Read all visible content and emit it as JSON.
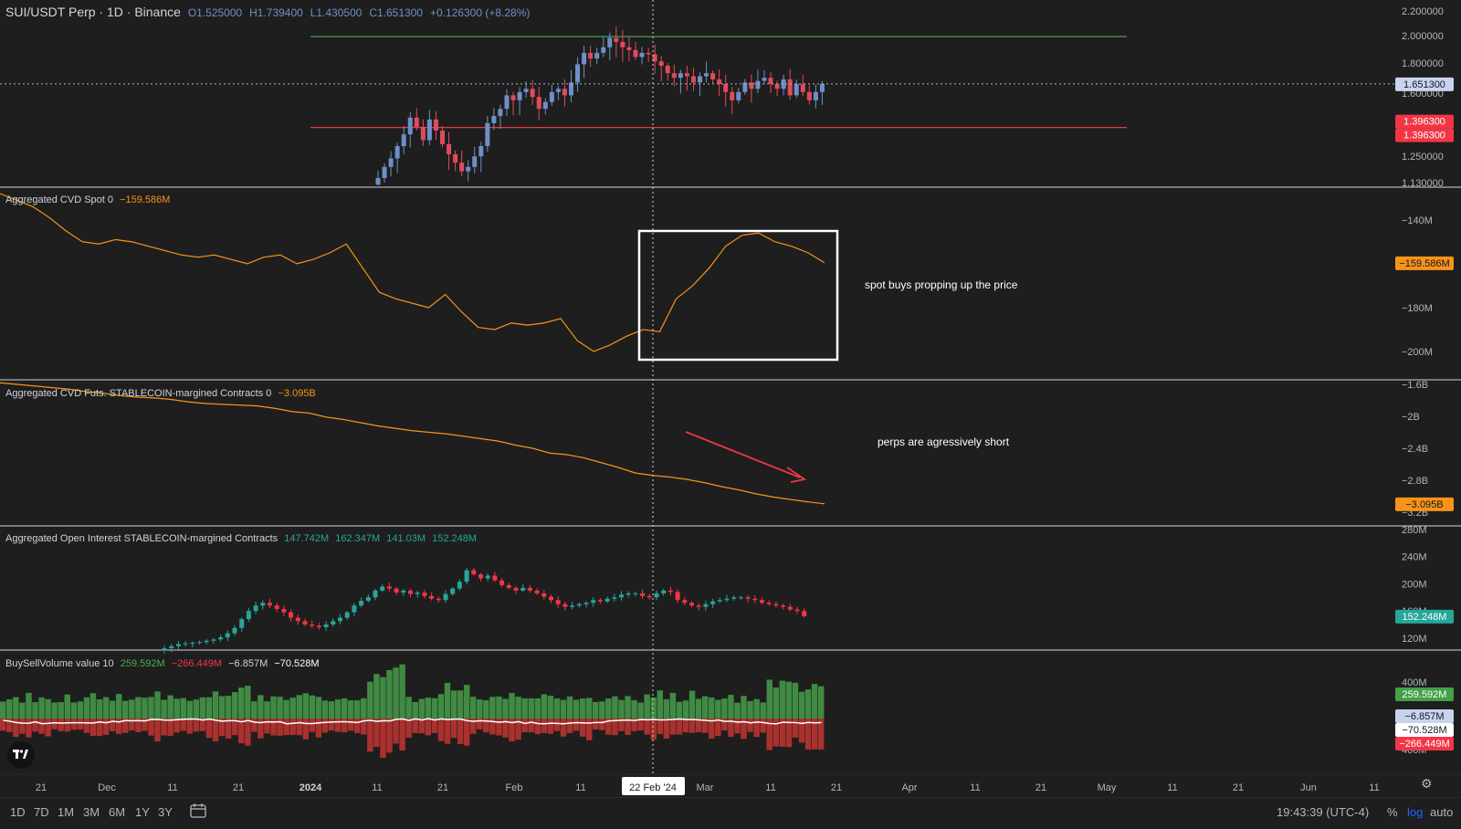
{
  "header": {
    "symbol": "SUI/USDT Perp · 1D · Binance",
    "o": "O1.525000",
    "h": "H1.739400",
    "l": "L1.430500",
    "c": "C1.651300",
    "chg": "+0.126300 (+8.28%)"
  },
  "colors": {
    "bg": "#1e1e1e",
    "up": "#6e8fc9",
    "down": "#e04b5c",
    "green": "#4caf50",
    "red": "#f23645",
    "orange": "#f7931a",
    "teal": "#26a69a",
    "white": "#ffffff"
  },
  "price_pane": {
    "axis_labels": [
      "2.200000",
      "2.000000",
      "1.800000",
      "1.600000",
      "1.250000",
      "1.130000"
    ],
    "price_tag": "1.651300",
    "level_tags": [
      "1.396300",
      "1.396300"
    ],
    "resistance_level": 1.98,
    "support_level": 1.3963
  },
  "cvd_spot": {
    "title": "Aggregated CVD Spot 0",
    "value": "−159.586M",
    "axis_labels": [
      "−140M",
      "−180M",
      "−200M"
    ],
    "tag": "−159.586M",
    "annotation": "spot buys propping up the price"
  },
  "cvd_futs": {
    "title": "Aggregated CVD Futs. STABLECOIN-margined Contracts 0",
    "value": "−3.095B",
    "axis_labels": [
      "−1.6B",
      "−2B",
      "−2.4B",
      "−2.8B",
      "−3.2B"
    ],
    "tag": "−3.095B",
    "annotation": "perps are agressively short"
  },
  "open_interest": {
    "title": "Aggregated Open Interest STABLECOIN-margined Contracts",
    "values": [
      "147.742M",
      "162.347M",
      "141.03M",
      "152.248M"
    ],
    "axis_labels": [
      "280M",
      "240M",
      "200M",
      "160M",
      "120M"
    ],
    "tag": "152.248M"
  },
  "buysell": {
    "title": "BuySellVolume value 10",
    "v1": "259.592M",
    "v2": "−266.449M",
    "v3": "−6.857M",
    "v4": "−70.528M",
    "axis_labels": [
      "400M",
      "400M"
    ],
    "tags": [
      "259.592M",
      "−6.857M",
      "−70.528M",
      "−266.449M"
    ]
  },
  "time_axis": {
    "labels": [
      "21",
      "Dec",
      "11",
      "21",
      "2024",
      "11",
      "21",
      "Feb",
      "11",
      "Mar",
      "11",
      "21",
      "Apr",
      "11",
      "21",
      "May",
      "11",
      "21",
      "Jun",
      "11"
    ],
    "crosshair_label": "22 Feb '24"
  },
  "bottom_bar": {
    "timeframes": [
      "1D",
      "7D",
      "1M",
      "3M",
      "6M",
      "1Y",
      "3Y"
    ],
    "clock": "19:43:39 (UTC-4)",
    "pct": "%",
    "log": "log",
    "auto": "auto"
  },
  "chart_data": [
    {
      "type": "candlestick",
      "title": "SUI/USDT Perp · 1D · Binance",
      "ylim": [
        1.13,
        2.2
      ],
      "log_scale": true,
      "x_range": [
        "2023-11-18",
        "2024-03-19"
      ],
      "series": [
        {
          "name": "SUI/USDT",
          "open_high_low_close_last": [
            1.525,
            1.7394,
            1.4305,
            1.6513
          ]
        }
      ],
      "horizontal_lines": [
        {
          "value": 1.98,
          "color": "green"
        },
        {
          "value": 1.3963,
          "color": "red"
        }
      ]
    },
    {
      "type": "line",
      "title": "Aggregated CVD Spot 0",
      "last_value_M": -159.586,
      "ylim_M": [
        -205,
        -128
      ],
      "points_M": [
        -128,
        -131,
        -134,
        -139,
        -145,
        -150,
        -151,
        -149,
        -150,
        -152,
        -154,
        -156,
        -157,
        -156,
        -158,
        -160,
        -157,
        -156,
        -160,
        -158,
        -155,
        -151,
        -162,
        -173,
        -176,
        -178,
        -180,
        -174,
        -182,
        -189,
        -190,
        -187,
        -188,
        -187,
        -185,
        -195,
        -200,
        -197,
        -193,
        -190,
        -191,
        -176,
        -170,
        -162,
        -152,
        -147,
        -146,
        -150,
        -152,
        -155,
        -159.586
      ]
    },
    {
      "type": "line",
      "title": "Aggregated CVD Futs. STABLECOIN-margined Contracts 0",
      "last_value_B": -3.095,
      "ylim_B": [
        -3.2,
        -1.6
      ],
      "points_B": [
        -1.58,
        -1.6,
        -1.62,
        -1.64,
        -1.66,
        -1.69,
        -1.71,
        -1.74,
        -1.76,
        -1.77,
        -1.79,
        -1.82,
        -1.84,
        -1.85,
        -1.86,
        -1.87,
        -1.9,
        -1.94,
        -1.96,
        -2.01,
        -2.04,
        -2.08,
        -2.12,
        -2.15,
        -2.18,
        -2.2,
        -2.22,
        -2.25,
        -2.28,
        -2.31,
        -2.36,
        -2.4,
        -2.46,
        -2.48,
        -2.52,
        -2.58,
        -2.64,
        -2.71,
        -2.74,
        -2.76,
        -2.79,
        -2.83,
        -2.88,
        -2.92,
        -2.97,
        -3.01,
        -3.04,
        -3.07,
        -3.095
      ]
    },
    {
      "type": "candlestick",
      "title": "Aggregated Open Interest STABLECOIN-margined Contracts",
      "ylim_M": [
        105,
        280
      ],
      "series": [
        {
          "name": "Open Interest",
          "open_high_low_close_last_M": [
            147.742,
            162.347,
            141.03,
            152.248
          ]
        }
      ]
    },
    {
      "type": "bar",
      "title": "BuySellVolume value 10",
      "last_values_M": {
        "buy": 259.592,
        "sell": -266.449,
        "delta": -6.857,
        "ma": -70.528
      }
    }
  ]
}
